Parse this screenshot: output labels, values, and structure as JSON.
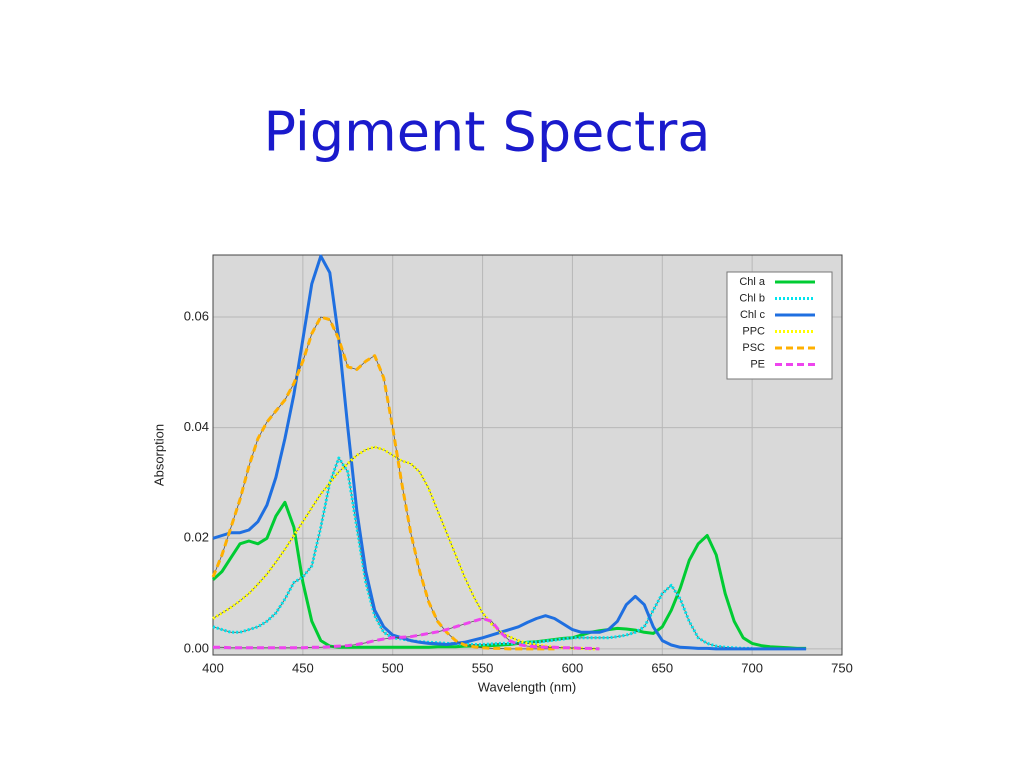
{
  "chart_data": {
    "type": "line",
    "title": "Pigment Spectra",
    "x_label": "Wavelength (nm)",
    "y_label": "Absorption",
    "x": [
      400,
      405,
      410,
      415,
      420,
      425,
      430,
      435,
      440,
      445,
      450,
      455,
      460,
      465,
      470,
      475,
      480,
      485,
      490,
      495,
      500,
      505,
      510,
      515,
      520,
      525,
      530,
      535,
      540,
      545,
      550,
      555,
      560,
      565,
      570,
      575,
      580,
      585,
      590,
      595,
      600,
      605,
      610,
      615,
      620,
      625,
      630,
      635,
      640,
      645,
      650,
      655,
      660,
      665,
      670,
      675,
      680,
      685,
      690,
      695,
      700,
      705,
      710,
      715,
      720,
      725,
      730
    ],
    "series": [
      {
        "name": "Chl a",
        "color": "#00cc33",
        "dash": "solid",
        "values": [
          0.0125,
          0.014,
          0.0165,
          0.019,
          0.0195,
          0.019,
          0.02,
          0.024,
          0.0265,
          0.022,
          0.012,
          0.005,
          0.0015,
          0.0005,
          0.0003,
          0.0003,
          0.0003,
          0.0003,
          0.0003,
          0.0003,
          0.0003,
          0.0003,
          0.0003,
          0.0003,
          0.0003,
          0.0004,
          0.0004,
          0.0004,
          0.0005,
          0.0005,
          0.0005,
          0.0006,
          0.0007,
          0.0008,
          0.001,
          0.0012,
          0.0013,
          0.0015,
          0.0017,
          0.0019,
          0.002,
          0.0025,
          0.003,
          0.0033,
          0.0035,
          0.0037,
          0.0036,
          0.0034,
          0.003,
          0.0028,
          0.004,
          0.007,
          0.011,
          0.016,
          0.019,
          0.0205,
          0.017,
          0.01,
          0.005,
          0.002,
          0.001,
          0.0006,
          0.0004,
          0.0003,
          0.0002,
          0.0001,
          0.0001
        ]
      },
      {
        "name": "Chl b",
        "color": "#00e5ee",
        "dash": "dotted",
        "values": [
          0.004,
          0.0035,
          0.003,
          0.003,
          0.0035,
          0.004,
          0.005,
          0.0065,
          0.009,
          0.012,
          0.013,
          0.015,
          0.022,
          0.03,
          0.0345,
          0.032,
          0.022,
          0.012,
          0.006,
          0.003,
          0.002,
          0.0018,
          0.0015,
          0.0013,
          0.0012,
          0.0011,
          0.001,
          0.0009,
          0.0009,
          0.0008,
          0.0008,
          0.0009,
          0.001,
          0.001,
          0.0011,
          0.0012,
          0.0012,
          0.0014,
          0.0016,
          0.0018,
          0.002,
          0.002,
          0.002,
          0.002,
          0.002,
          0.0022,
          0.0025,
          0.003,
          0.004,
          0.007,
          0.01,
          0.0115,
          0.009,
          0.005,
          0.002,
          0.001,
          0.0005,
          0.0003,
          0.0002,
          0.0001,
          0.0001,
          null,
          null,
          null,
          null,
          null,
          null
        ]
      },
      {
        "name": "Chl c",
        "color": "#1f6fe0",
        "dash": "solid",
        "values": [
          0.02,
          0.0205,
          0.021,
          0.021,
          0.0215,
          0.023,
          0.026,
          0.031,
          0.038,
          0.046,
          0.056,
          0.066,
          0.071,
          0.068,
          0.056,
          0.04,
          0.025,
          0.014,
          0.007,
          0.004,
          0.0025,
          0.002,
          0.0015,
          0.0012,
          0.001,
          0.0009,
          0.0008,
          0.001,
          0.0012,
          0.0016,
          0.002,
          0.0025,
          0.003,
          0.0035,
          0.004,
          0.0048,
          0.0055,
          0.006,
          0.0055,
          0.0045,
          0.0035,
          0.003,
          0.003,
          0.003,
          0.0035,
          0.005,
          0.008,
          0.0095,
          0.008,
          0.004,
          0.0015,
          0.0007,
          0.0003,
          0.0002,
          0.0001,
          0.0001,
          0,
          0,
          0,
          0,
          0,
          0,
          0,
          0,
          0,
          0,
          0
        ]
      },
      {
        "name": "PPC",
        "color": "#ffff00",
        "dash": "dotted",
        "values": [
          0.0055,
          0.0065,
          0.0075,
          0.0087,
          0.01,
          0.0117,
          0.0135,
          0.0157,
          0.018,
          0.0205,
          0.023,
          0.0255,
          0.028,
          0.03,
          0.032,
          0.0335,
          0.035,
          0.036,
          0.0365,
          0.036,
          0.035,
          0.034,
          0.0335,
          0.032,
          0.029,
          0.025,
          0.021,
          0.017,
          0.013,
          0.0095,
          0.0065,
          0.0045,
          0.003,
          0.0022,
          0.0015,
          0.001,
          0.0007,
          0.0005,
          0.0003,
          0.0002,
          0.0001,
          0.0001,
          0,
          0,
          null,
          null,
          null,
          null,
          null,
          null,
          null,
          null,
          null,
          null,
          null,
          null,
          null,
          null,
          null,
          null,
          null,
          null,
          null,
          null,
          null,
          null,
          null
        ]
      },
      {
        "name": "PSC",
        "color": "#ffb000",
        "dash": "dashed",
        "values": [
          0.013,
          0.017,
          0.022,
          0.027,
          0.033,
          0.038,
          0.041,
          0.043,
          0.045,
          0.048,
          0.052,
          0.057,
          0.06,
          0.0595,
          0.056,
          0.051,
          0.0505,
          0.052,
          0.053,
          0.049,
          0.04,
          0.03,
          0.021,
          0.014,
          0.0085,
          0.005,
          0.003,
          0.0015,
          0.0007,
          0.0004,
          0.0002,
          0.0001,
          0.0001,
          0,
          0,
          0,
          0,
          0,
          0,
          null,
          null,
          null,
          null,
          null,
          null,
          null,
          null,
          null,
          null,
          null,
          null,
          null,
          null,
          null,
          null,
          null,
          null,
          null,
          null,
          null,
          null,
          null,
          null,
          null,
          null,
          null,
          null
        ]
      },
      {
        "name": "PE",
        "color": "#ee44ee",
        "dash": "dashed",
        "values": [
          0.0003,
          0.0003,
          0.0002,
          0.0002,
          0.0002,
          0.0002,
          0.0002,
          0.0002,
          0.0002,
          0.0002,
          0.0002,
          0.0003,
          0.0003,
          0.0004,
          0.0005,
          0.0006,
          0.0008,
          0.0011,
          0.0015,
          0.0018,
          0.002,
          0.0021,
          0.0022,
          0.0025,
          0.0028,
          0.0031,
          0.0035,
          0.004,
          0.0045,
          0.005,
          0.0055,
          0.005,
          0.003,
          0.0015,
          0.0008,
          0.0005,
          0.0004,
          0.0003,
          0.0003,
          0.0002,
          0.0002,
          0.0001,
          0.0001,
          0,
          null,
          null,
          null,
          null,
          null,
          null,
          null,
          null,
          null,
          null,
          null,
          null,
          null,
          null,
          null,
          null,
          null,
          null,
          null,
          null,
          null,
          null,
          null
        ]
      }
    ],
    "xlim": [
      400,
      750
    ],
    "xticks": [
      400,
      450,
      500,
      550,
      600,
      650,
      700,
      750
    ],
    "ylim": [
      -0.0011,
      0.0712
    ],
    "yticks": [
      {
        "value": 0,
        "label": "0.00"
      },
      0.02,
      0.04,
      0.06
    ],
    "grid": true,
    "legend": "top-right"
  }
}
